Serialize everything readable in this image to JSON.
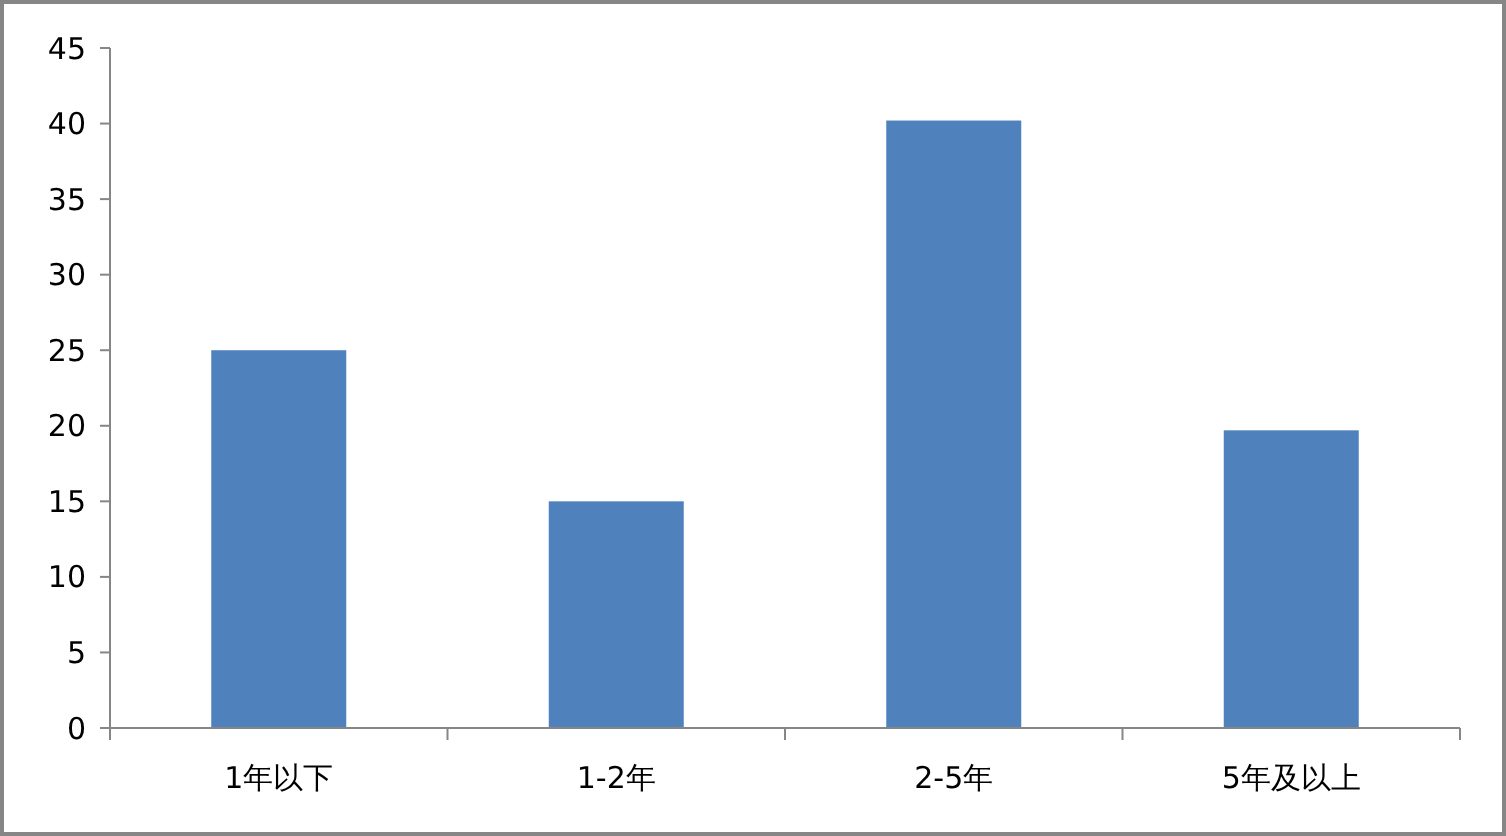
{
  "chart_data": {
    "type": "bar",
    "categories": [
      "1年以下",
      "1-2年",
      "2-5年",
      "5年及以上"
    ],
    "values": [
      25,
      15,
      40.2,
      19.7
    ],
    "color": "#4f81bd",
    "ylim": [
      0,
      45
    ],
    "yticks": [
      0,
      5,
      10,
      15,
      20,
      25,
      30,
      35,
      40,
      45
    ],
    "grid": false
  }
}
